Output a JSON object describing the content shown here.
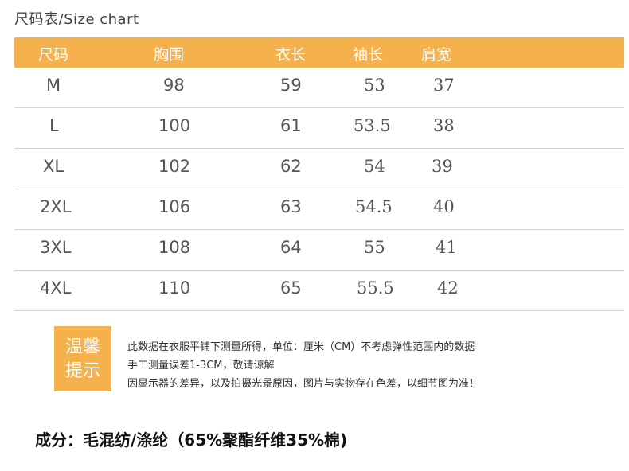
{
  "page_title": "尺码表/Size chart",
  "table": {
    "columns": [
      "尺码",
      "胸围",
      "衣长",
      "袖长",
      "肩宽"
    ],
    "rows": [
      [
        "M",
        "98",
        "59",
        "53",
        "37"
      ],
      [
        "L",
        "100",
        "61",
        "53.5",
        "38"
      ],
      [
        "XL",
        "102",
        "62",
        "54",
        "39"
      ],
      [
        "2XL",
        "106",
        "63",
        "54.5",
        "40"
      ],
      [
        "3XL",
        "108",
        "64",
        "55",
        "41"
      ],
      [
        "4XL",
        "110",
        "65",
        "55.5",
        "42"
      ]
    ]
  },
  "tip": {
    "label_line1": "温馨",
    "label_line2": "提示",
    "notes": [
      "此数据在衣服平铺下测量所得，单位：厘米（CM）不考虑弹性范围内的数据",
      "手工测量误差1-3CM，敬请谅解",
      "因显示器的差异，以及拍摄光景原因，图片与实物存在色差，以细节图为准！"
    ]
  },
  "composition": "成分：毛混纺/涤纶（65%聚酯纤维35%棉)",
  "colors": {
    "accent": "#f5b24c",
    "header_text": "#ffffff",
    "row_separator": "#d4d4d4"
  }
}
